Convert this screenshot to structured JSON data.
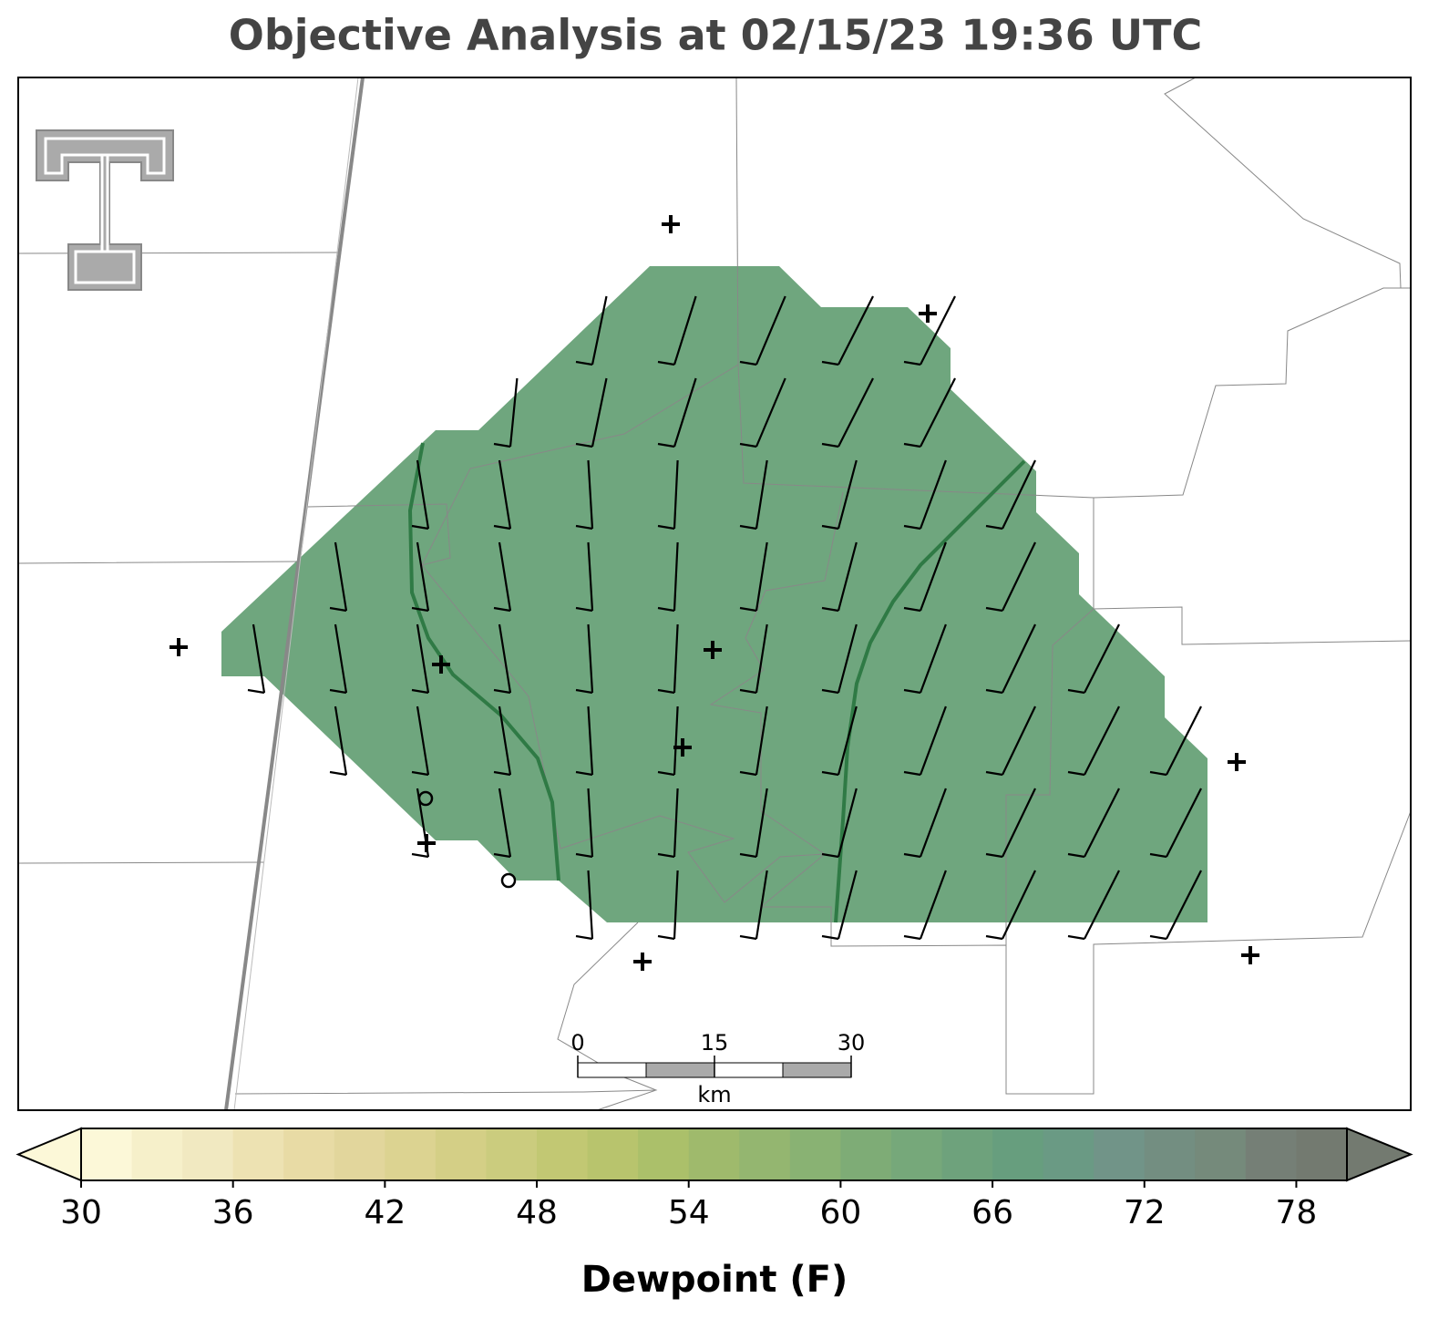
{
  "title": "Objective Analysis at 02/15/23 19:36 UTC",
  "colorbar": {
    "label": "Dewpoint (F)",
    "lim": [
      30,
      80
    ],
    "ticks": [
      30,
      36,
      42,
      48,
      54,
      60,
      66,
      72,
      78
    ],
    "colors": [
      "#fcf8d8",
      "#f6f0ca",
      "#f1e9c1",
      "#ede2b2",
      "#e8dba5",
      "#e2d69c",
      "#dcd391",
      "#d4cf86",
      "#cbcc7e",
      "#c2c873",
      "#b8c46d",
      "#abc06a",
      "#9fba6c",
      "#94b670",
      "#89b273",
      "#7eac76",
      "#76a87a",
      "#6ea27c",
      "#679e7e",
      "#6a9a84",
      "#719488",
      "#738e81",
      "#758a7b",
      "#757f76",
      "#737a70"
    ]
  },
  "scale_bar": {
    "lim": [
      0,
      30
    ],
    "ticks": [
      0,
      15,
      30
    ],
    "unit": "km"
  }
}
